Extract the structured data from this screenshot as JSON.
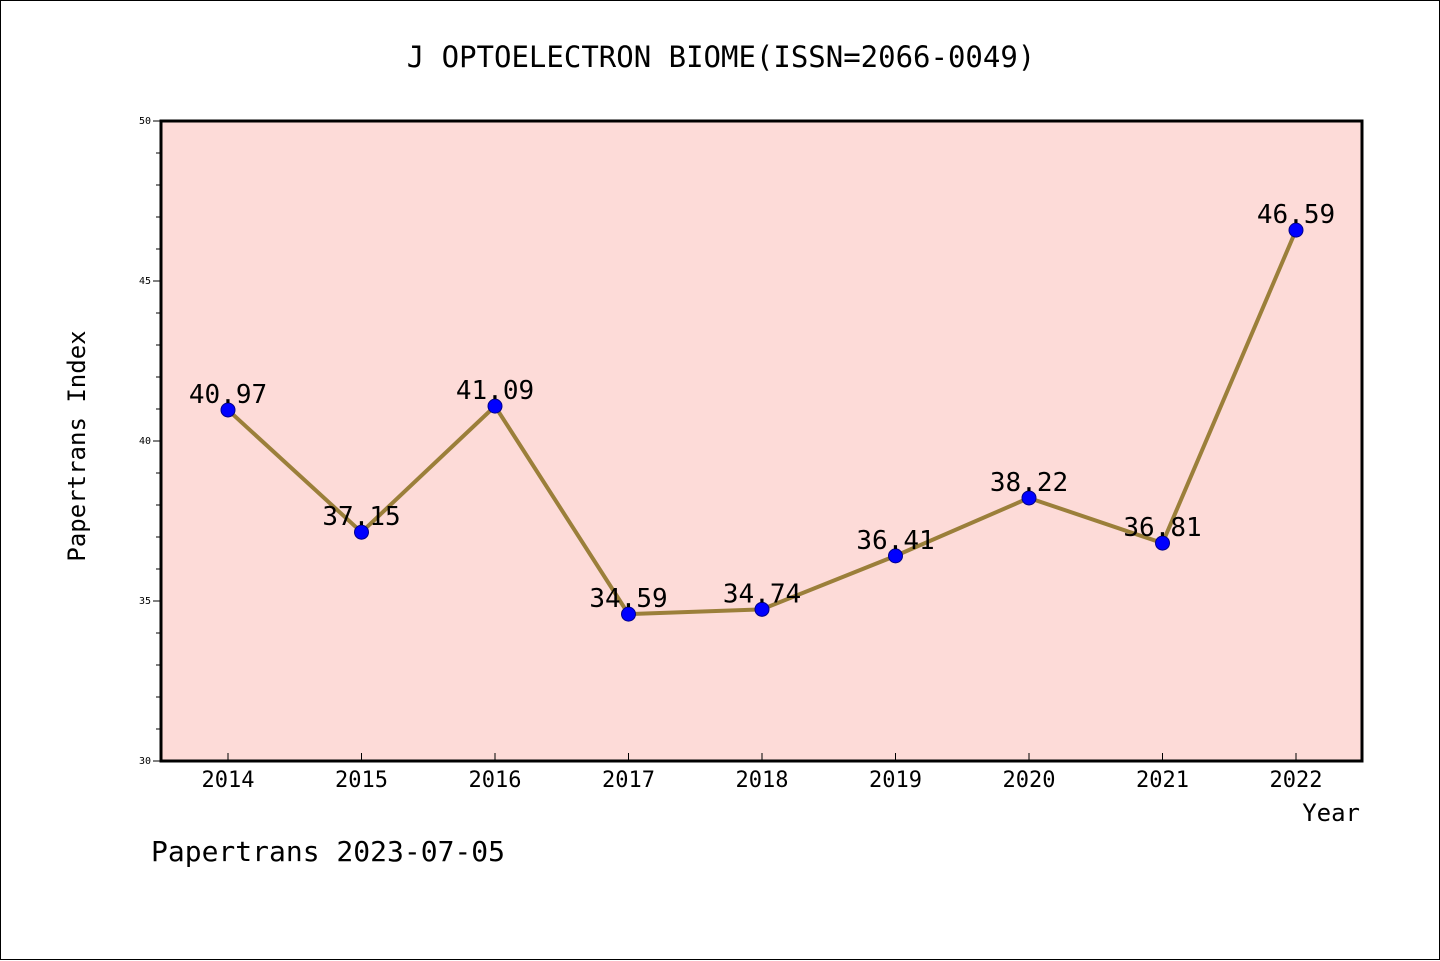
{
  "chart_data": {
    "type": "line",
    "title": "J OPTOELECTRON BIOME(ISSN=2066-0049)",
    "xlabel": "Year",
    "ylabel": "Papertrans Index",
    "categories": [
      "2014",
      "2015",
      "2016",
      "2017",
      "2018",
      "2019",
      "2020",
      "2021",
      "2022"
    ],
    "values": [
      40.97,
      37.15,
      41.09,
      34.59,
      34.74,
      36.41,
      38.22,
      36.81,
      46.59
    ],
    "data_labels": [
      "40.97",
      "37.15",
      "41.09",
      "34.59",
      "34.74",
      "36.41",
      "38.22",
      "36.81",
      "46.59"
    ],
    "ylim": [
      30,
      50
    ],
    "y_ticks": [
      "30",
      "35",
      "40",
      "45",
      "50"
    ],
    "grid": false,
    "legend": "none",
    "colors": {
      "plot_background": "#fddbd8",
      "line": "#9b7f3a",
      "marker": "#0000ff"
    }
  },
  "footer": "Papertrans 2023-07-05"
}
